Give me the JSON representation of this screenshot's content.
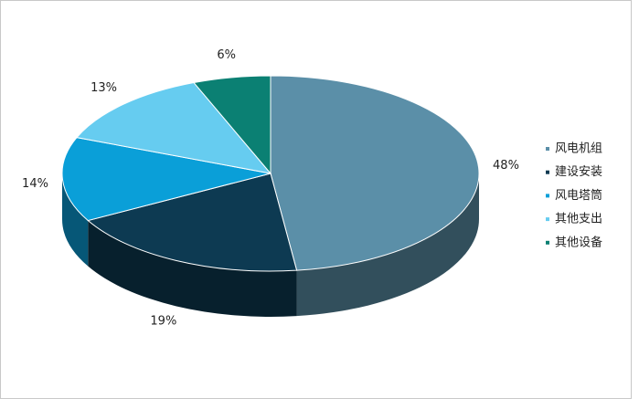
{
  "chart_data": {
    "type": "pie",
    "categories": [
      "风电机组",
      "建设安装",
      "风电塔筒",
      "其他支出",
      "其他设备"
    ],
    "values": [
      48,
      19,
      14,
      13,
      6
    ],
    "value_labels": [
      "48%",
      "19%",
      "14%",
      "13%",
      "6%"
    ],
    "colors": [
      "#5b8fa8",
      "#0d3a52",
      "#0a9fd8",
      "#66ccf0",
      "#0b8073"
    ],
    "legend": "right"
  }
}
